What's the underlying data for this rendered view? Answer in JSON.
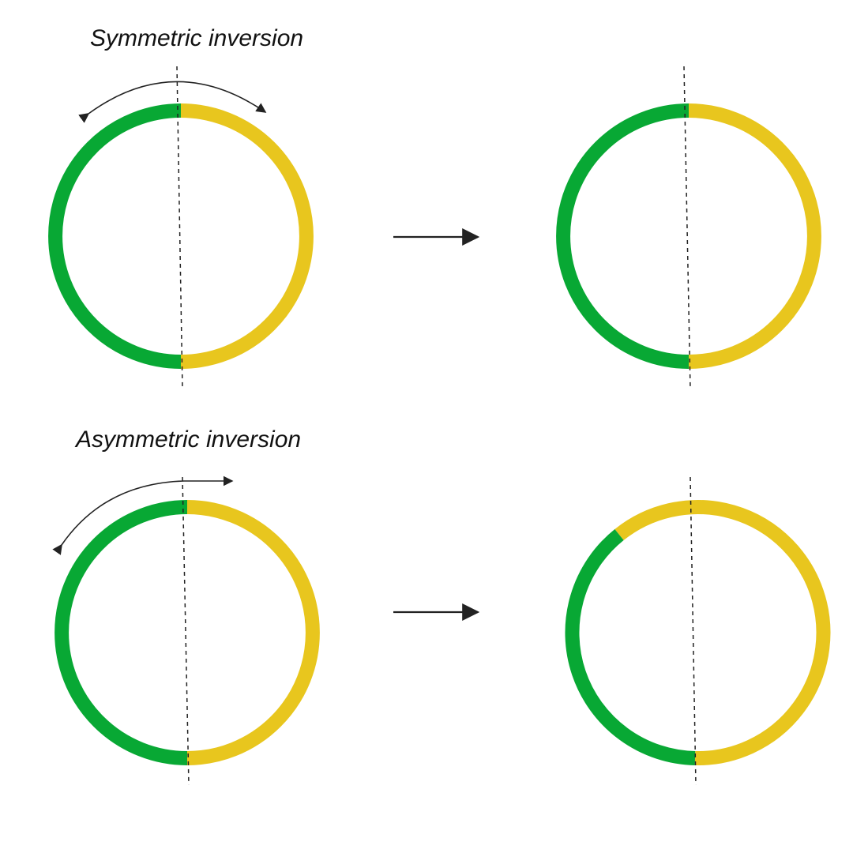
{
  "panels": {
    "symmetric": {
      "label": "Symmetric inversion"
    },
    "asymmetric": {
      "label": "Asymmetric inversion"
    }
  },
  "colors": {
    "green": "#08a834",
    "yellow": "#e8c61e",
    "line": "#222222"
  },
  "icons": {
    "process_arrow": "right-arrow-icon",
    "rotation_arrow": "curved-double-arrow-icon"
  }
}
